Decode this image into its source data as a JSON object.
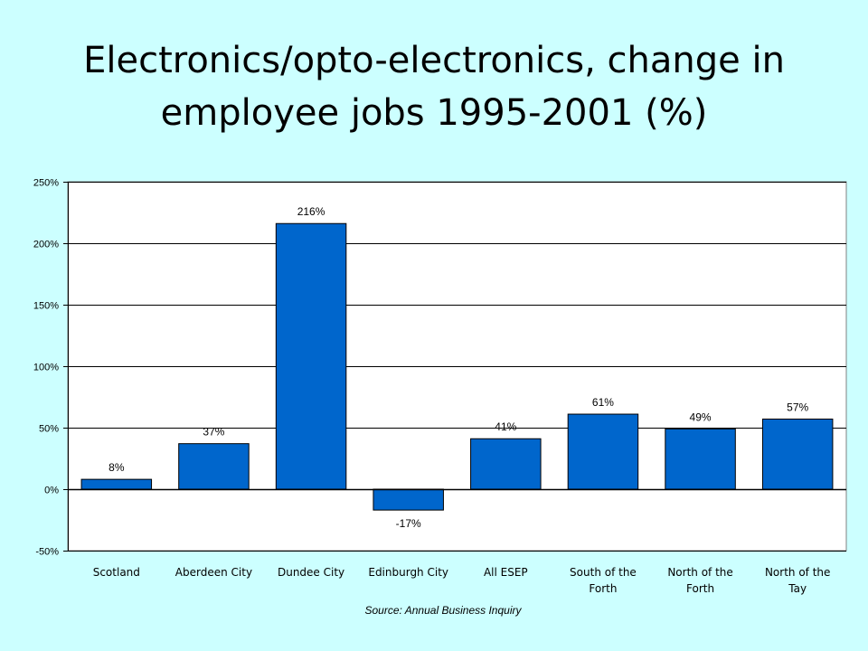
{
  "slide": {
    "title": "Electronics/opto-electronics, change in employee jobs 1995-2001 (%)",
    "source": "Source: Annual Business Inquiry"
  },
  "colors": {
    "background": "#ccffff",
    "plot_area": "#ffffff",
    "bar": "#0066cc"
  },
  "chart_data": {
    "type": "bar",
    "title": "",
    "xlabel": "",
    "ylabel": "",
    "categories": [
      [
        "Scotland"
      ],
      [
        "Aberdeen City"
      ],
      [
        "Dundee City"
      ],
      [
        "Edinburgh City"
      ],
      [
        "All ESEP"
      ],
      [
        "South of the",
        "Forth"
      ],
      [
        "North of the",
        "Forth"
      ],
      [
        "North of the",
        "Tay"
      ]
    ],
    "values": [
      8,
      37,
      216,
      -17,
      41,
      61,
      49,
      57
    ],
    "data_labels": [
      "8%",
      "37%",
      "216%",
      "-17%",
      "41%",
      "61%",
      "49%",
      "57%"
    ],
    "ylim": [
      -50,
      250
    ],
    "y_ticks": [
      -50,
      0,
      50,
      100,
      150,
      200,
      250
    ],
    "y_tick_labels": [
      "-50%",
      "0%",
      "50%",
      "100%",
      "150%",
      "200%",
      "250%"
    ],
    "grid": true,
    "legend": false
  }
}
